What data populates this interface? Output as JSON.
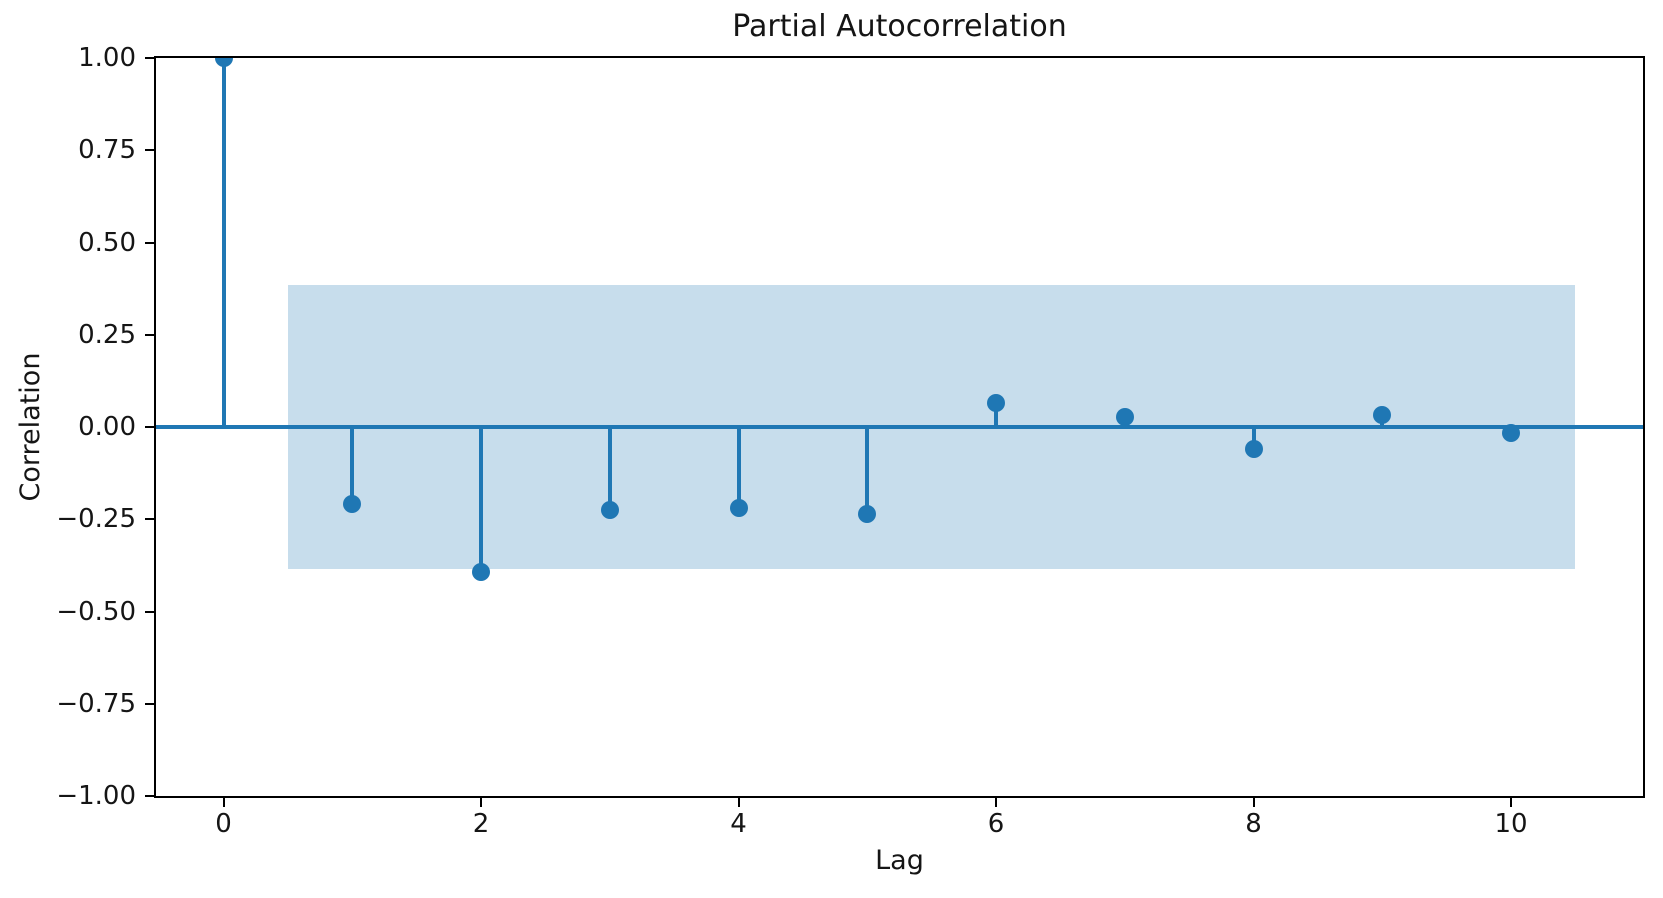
{
  "chart_data": {
    "type": "stem",
    "title": "Partial Autocorrelation",
    "xlabel": "Lag",
    "ylabel": "Correlation",
    "x": [
      0,
      1,
      2,
      3,
      4,
      5,
      6,
      7,
      8,
      9,
      10
    ],
    "values": [
      1.0,
      -0.21,
      -0.392,
      -0.225,
      -0.22,
      -0.235,
      0.065,
      0.028,
      -0.06,
      0.033,
      -0.015
    ],
    "confidence_band": {
      "x_start": 0.5,
      "x_end": 10.5,
      "lower": -0.385,
      "upper": 0.385
    },
    "xlim": [
      -0.525,
      11.025
    ],
    "ylim": [
      -1.0,
      1.0
    ],
    "xticks": [
      {
        "value": 0,
        "label": "0"
      },
      {
        "value": 2,
        "label": "2"
      },
      {
        "value": 4,
        "label": "4"
      },
      {
        "value": 6,
        "label": "6"
      },
      {
        "value": 8,
        "label": "8"
      },
      {
        "value": 10,
        "label": "10"
      }
    ],
    "yticks": [
      {
        "value": 1.0,
        "label": "1.00"
      },
      {
        "value": 0.75,
        "label": "0.75"
      },
      {
        "value": 0.5,
        "label": "0.50"
      },
      {
        "value": 0.25,
        "label": "0.25"
      },
      {
        "value": 0.0,
        "label": "0.00"
      },
      {
        "value": -0.25,
        "label": "−0.25"
      },
      {
        "value": -0.5,
        "label": "−0.50"
      },
      {
        "value": -0.75,
        "label": "−0.75"
      },
      {
        "value": -1.0,
        "label": "−1.00"
      }
    ],
    "grid": false,
    "legend": null,
    "colors": {
      "stem": "#1f77b4",
      "marker": "#1f77b4",
      "zero_line": "#1f77b4",
      "band": "#1f77b4",
      "band_alpha": 0.25,
      "spine": "#000000",
      "text": "#151515"
    }
  }
}
